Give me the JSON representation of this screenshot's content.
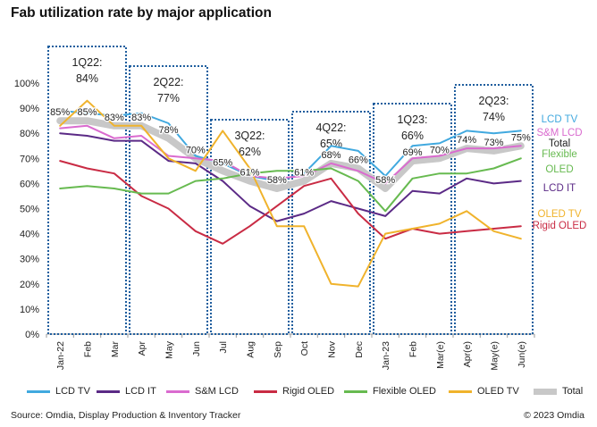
{
  "title": "Fab utilization rate by major application",
  "footer": {
    "source": "Source: Omdia, Display Production & Inventory Tracker",
    "copyright": "© 2023 Omdia"
  },
  "chart_data": {
    "type": "line",
    "title": "Fab utilization rate by major application",
    "xlabel": "",
    "ylabel": "",
    "ylim": [
      0,
      100
    ],
    "y_unit": "%",
    "y_ticks": [
      "0%",
      "10%",
      "20%",
      "30%",
      "40%",
      "50%",
      "60%",
      "70%",
      "80%",
      "90%",
      "100%"
    ],
    "grid": false,
    "legend_position": "bottom",
    "categories": [
      "Jan-22",
      "Feb",
      "Mar",
      "Apr",
      "May",
      "Jun",
      "Jul",
      "Aug",
      "Sep",
      "Oct",
      "Nov",
      "Dec",
      "Jan-23",
      "Feb",
      "Mar(e)",
      "Apr(e)",
      "May(e)",
      "Jun(e)"
    ],
    "series": [
      {
        "name": "LCD TV",
        "color": "#41a9df",
        "values": [
          89,
          88,
          87,
          88,
          84,
          71,
          68,
          63,
          61,
          64,
          75,
          73,
          63,
          75,
          76,
          81,
          80,
          81
        ]
      },
      {
        "name": "LCD IT",
        "color": "#5b2a86",
        "values": [
          80,
          79,
          77,
          77,
          69,
          68,
          61,
          51,
          45,
          48,
          53,
          50,
          47,
          57,
          56,
          62,
          60,
          61
        ]
      },
      {
        "name": "S&M LCD",
        "color": "#da6bcf",
        "values": [
          82,
          83,
          78,
          79,
          71,
          70,
          69,
          63,
          62,
          63,
          68,
          65,
          60,
          70,
          71,
          74,
          74,
          75
        ]
      },
      {
        "name": "Rigid OLED",
        "color": "#c92b44",
        "values": [
          69,
          66,
          64,
          55,
          50,
          41,
          36,
          43,
          51,
          59,
          62,
          48,
          38,
          42,
          40,
          41,
          42,
          43
        ]
      },
      {
        "name": "Flexible OLED",
        "color": "#67ba50",
        "values": [
          58,
          59,
          58,
          56,
          56,
          61,
          62,
          64,
          65,
          65,
          66,
          61,
          49,
          62,
          64,
          64,
          66,
          70
        ]
      },
      {
        "name": "OLED TV",
        "color": "#f0b32c",
        "values": [
          83,
          93,
          83,
          83,
          70,
          65,
          81,
          66,
          43,
          43,
          20,
          19,
          40,
          42,
          44,
          49,
          41,
          38
        ]
      },
      {
        "name": "Total",
        "color": "#c8c8c8",
        "values": [
          85,
          85,
          83,
          83,
          78,
          70,
          65,
          61,
          58,
          61,
          68,
          66,
          58,
          69,
          70,
          74,
          73,
          75
        ]
      }
    ],
    "total_labels": [
      "85%",
      "85%",
      "83%",
      "83%",
      "78%",
      "70%",
      "65%",
      "61%",
      "58%",
      "61%",
      "68%",
      "66%",
      "58%",
      "69%",
      "70%",
      "74%",
      "73%",
      "75%"
    ],
    "quarters": [
      {
        "label": "1Q22:",
        "value": "84%",
        "start_index": 0,
        "end_index": 2
      },
      {
        "label": "2Q22:",
        "value": "77%",
        "start_index": 3,
        "end_index": 5
      },
      {
        "label": "3Q22:",
        "value": "62%",
        "start_index": 6,
        "end_index": 8
      },
      {
        "label": "4Q22:",
        "value": "65%",
        "start_index": 9,
        "end_index": 11
      },
      {
        "label": "1Q23:",
        "value": "66%",
        "start_index": 12,
        "end_index": 14
      },
      {
        "label": "2Q23:",
        "value": "74%",
        "start_index": 15,
        "end_index": 17
      }
    ],
    "end_labels": [
      {
        "text": "LCD TV",
        "color": "#41a9df"
      },
      {
        "text": "S&M LCD",
        "color": "#da6bcf"
      },
      {
        "text": "Total",
        "color": "#222222"
      },
      {
        "text": "Flexible",
        "color": "#67ba50"
      },
      {
        "text": "OLED",
        "color": "#67ba50"
      },
      {
        "text": "LCD IT",
        "color": "#5b2a86"
      },
      {
        "text": "OLED TV",
        "color": "#f0b32c"
      },
      {
        "text": "Rigid OLED",
        "color": "#c92b44"
      }
    ],
    "legend": [
      {
        "name": "LCD TV",
        "color": "#41a9df"
      },
      {
        "name": "LCD IT",
        "color": "#5b2a86"
      },
      {
        "name": "S&M LCD",
        "color": "#da6bcf"
      },
      {
        "name": "Rigid OLED",
        "color": "#c92b44"
      },
      {
        "name": "Flexible OLED",
        "color": "#67ba50"
      },
      {
        "name": "OLED TV",
        "color": "#f0b32c"
      },
      {
        "name": "Total",
        "color": "#c8c8c8"
      }
    ]
  }
}
